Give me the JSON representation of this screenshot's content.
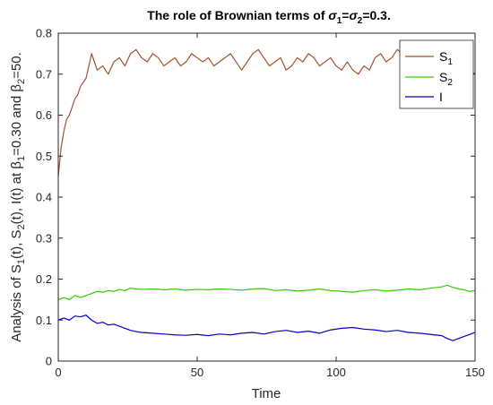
{
  "chart_data": {
    "type": "line",
    "title_parts": [
      "The role of Brownian terms of ",
      "σ",
      "1",
      "=",
      "σ",
      "2",
      "=0.3."
    ],
    "xlabel": "Time",
    "ylabel_parts": [
      "Analysis of S",
      "1",
      "(t), S",
      "2",
      "(t), I(t) at β",
      "1",
      "=0.30 and β",
      "2",
      "=50."
    ],
    "xlim": [
      0,
      150
    ],
    "ylim": [
      0,
      0.8
    ],
    "xticks": [
      "0",
      "50",
      "100",
      "150"
    ],
    "yticks": [
      "0",
      "0.1",
      "0.2",
      "0.3",
      "0.4",
      "0.5",
      "0.6",
      "0.7",
      "0.8"
    ],
    "grid": false,
    "legend_position": "top-right",
    "series": [
      {
        "name": "S",
        "name_sub": "1",
        "color": "#a0522d",
        "x": [
          0,
          1,
          2,
          3,
          4,
          5,
          6,
          7,
          8,
          9,
          10,
          11,
          12,
          13,
          14,
          16,
          18,
          20,
          22,
          24,
          26,
          28,
          30,
          32,
          34,
          36,
          38,
          40,
          42,
          44,
          46,
          48,
          50,
          52,
          54,
          56,
          58,
          60,
          62,
          64,
          66,
          68,
          70,
          72,
          74,
          76,
          78,
          80,
          82,
          84,
          86,
          88,
          90,
          92,
          94,
          96,
          98,
          100,
          102,
          104,
          106,
          108,
          110,
          112,
          114,
          116,
          118,
          120,
          122,
          124,
          126,
          128,
          130,
          132,
          134,
          136,
          138,
          140,
          142,
          144,
          146,
          148,
          150
        ],
        "y": [
          0.45,
          0.52,
          0.56,
          0.59,
          0.6,
          0.62,
          0.64,
          0.65,
          0.67,
          0.68,
          0.69,
          0.72,
          0.75,
          0.73,
          0.71,
          0.72,
          0.7,
          0.73,
          0.74,
          0.72,
          0.75,
          0.76,
          0.74,
          0.73,
          0.75,
          0.74,
          0.72,
          0.73,
          0.74,
          0.72,
          0.73,
          0.75,
          0.74,
          0.73,
          0.74,
          0.72,
          0.73,
          0.74,
          0.75,
          0.73,
          0.71,
          0.73,
          0.75,
          0.76,
          0.74,
          0.72,
          0.73,
          0.74,
          0.71,
          0.72,
          0.74,
          0.73,
          0.75,
          0.74,
          0.72,
          0.73,
          0.74,
          0.72,
          0.71,
          0.73,
          0.71,
          0.7,
          0.72,
          0.71,
          0.74,
          0.75,
          0.73,
          0.74,
          0.76,
          0.75,
          0.76,
          0.73,
          0.75,
          0.76,
          0.74,
          0.77,
          0.75,
          0.76,
          0.77,
          0.73,
          0.72,
          0.71,
          0.7
        ]
      },
      {
        "name": "S",
        "name_sub": "2",
        "color": "#33cc00",
        "x": [
          0,
          2,
          4,
          6,
          8,
          10,
          12,
          14,
          16,
          18,
          20,
          22,
          24,
          26,
          28,
          30,
          34,
          38,
          42,
          46,
          50,
          54,
          58,
          62,
          66,
          70,
          74,
          78,
          82,
          86,
          90,
          94,
          98,
          102,
          106,
          110,
          114,
          118,
          122,
          126,
          130,
          134,
          138,
          140,
          142,
          144,
          146,
          148,
          150
        ],
        "y": [
          0.15,
          0.155,
          0.15,
          0.16,
          0.155,
          0.16,
          0.165,
          0.17,
          0.168,
          0.172,
          0.17,
          0.175,
          0.172,
          0.178,
          0.176,
          0.175,
          0.176,
          0.174,
          0.176,
          0.173,
          0.175,
          0.174,
          0.176,
          0.175,
          0.173,
          0.176,
          0.177,
          0.172,
          0.174,
          0.171,
          0.173,
          0.176,
          0.172,
          0.17,
          0.168,
          0.172,
          0.174,
          0.171,
          0.173,
          0.176,
          0.174,
          0.178,
          0.181,
          0.185,
          0.18,
          0.176,
          0.174,
          0.17,
          0.172
        ]
      },
      {
        "name": "I",
        "name_sub": "",
        "color": "#0000cc",
        "x": [
          0,
          2,
          4,
          6,
          8,
          10,
          12,
          14,
          16,
          18,
          20,
          22,
          24,
          26,
          28,
          30,
          34,
          38,
          42,
          46,
          50,
          54,
          58,
          62,
          66,
          70,
          74,
          78,
          82,
          86,
          90,
          94,
          98,
          102,
          106,
          110,
          114,
          118,
          122,
          126,
          130,
          134,
          138,
          140,
          142,
          144,
          146,
          148,
          150
        ],
        "y": [
          0.1,
          0.105,
          0.1,
          0.11,
          0.108,
          0.112,
          0.1,
          0.092,
          0.095,
          0.088,
          0.09,
          0.085,
          0.08,
          0.075,
          0.072,
          0.07,
          0.068,
          0.066,
          0.064,
          0.063,
          0.065,
          0.062,
          0.066,
          0.064,
          0.068,
          0.07,
          0.066,
          0.072,
          0.075,
          0.07,
          0.073,
          0.068,
          0.076,
          0.08,
          0.082,
          0.078,
          0.076,
          0.072,
          0.075,
          0.07,
          0.068,
          0.065,
          0.062,
          0.055,
          0.05,
          0.055,
          0.06,
          0.065,
          0.07
        ]
      }
    ]
  }
}
